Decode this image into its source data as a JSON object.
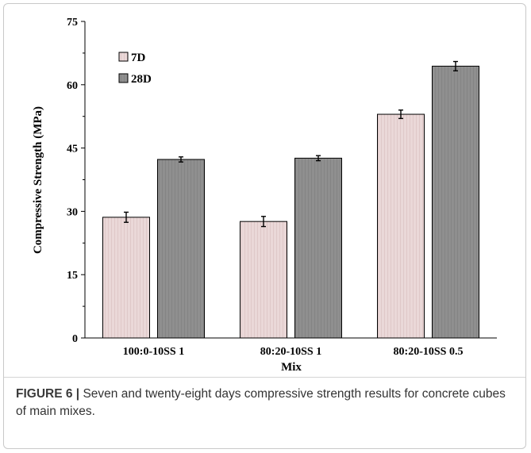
{
  "chart_data": {
    "type": "bar",
    "title": "",
    "xlabel": "Mix",
    "ylabel": "Compressive Strength (MPa)",
    "ylim": [
      0,
      75
    ],
    "yticks": [
      0,
      15,
      30,
      45,
      60,
      75
    ],
    "categories": [
      "100:0-10SS 1",
      "80:20-10SS 1",
      "80:20-10SS 0.5"
    ],
    "series": [
      {
        "name": "7D",
        "values": [
          28.6,
          27.6,
          53.0
        ],
        "errors": [
          1.2,
          1.2,
          1.0
        ],
        "color": "#ead7d7"
      },
      {
        "name": "28D",
        "values": [
          42.3,
          42.6,
          64.4
        ],
        "errors": [
          0.6,
          0.6,
          1.1
        ],
        "color": "#8c8c8c"
      }
    ],
    "legend_position": "top-left",
    "grid": false
  },
  "caption": {
    "label": "FIGURE 6 |",
    "text": " Seven and twenty-eight days compressive strength results for concrete cubes of main mixes."
  }
}
